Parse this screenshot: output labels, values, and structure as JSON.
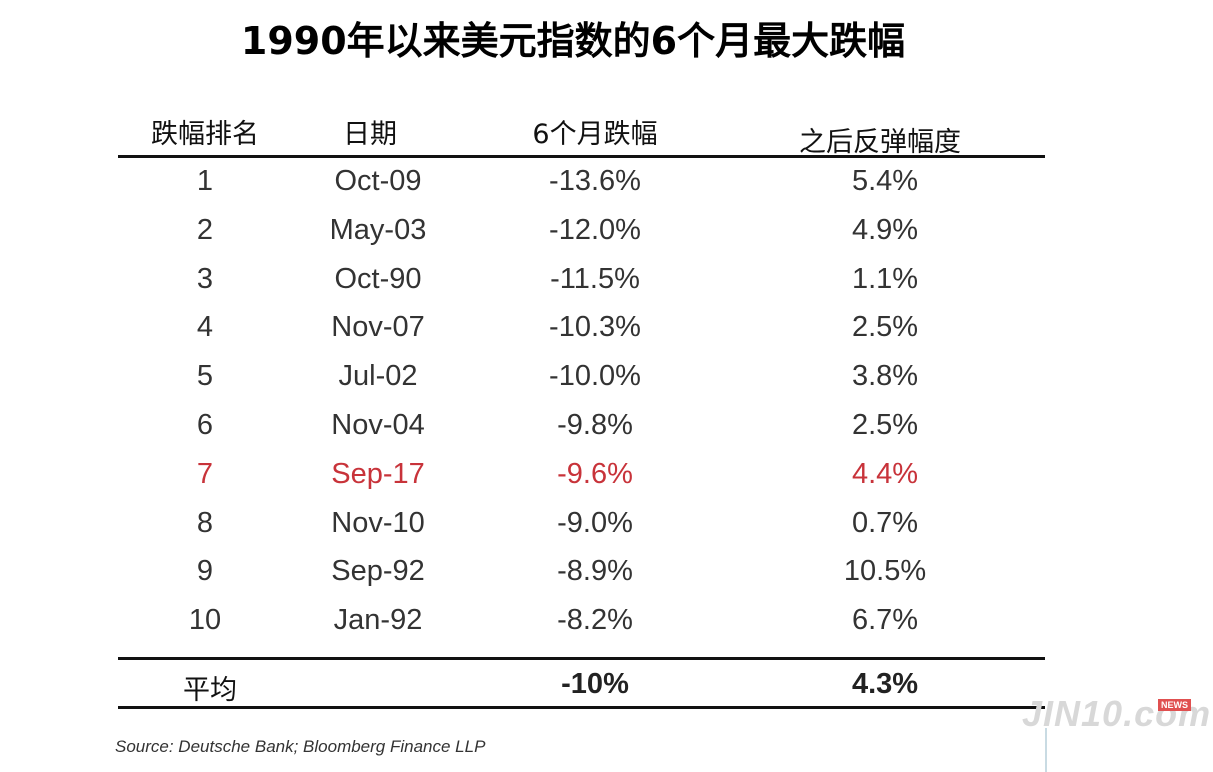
{
  "chart_data": {
    "type": "table",
    "title": "1990年以来美元指数的6个月最大跌幅",
    "columns": [
      "跌幅排名",
      "日期",
      "6个月跌幅",
      "之后反弹幅度"
    ],
    "rows": [
      {
        "rank": "1",
        "date": "Oct-09",
        "drop": "-13.6%",
        "rebound": "5.4%",
        "highlight": false
      },
      {
        "rank": "2",
        "date": "May-03",
        "drop": "-12.0%",
        "rebound": "4.9%",
        "highlight": false
      },
      {
        "rank": "3",
        "date": "Oct-90",
        "drop": "-11.5%",
        "rebound": "1.1%",
        "highlight": false
      },
      {
        "rank": "4",
        "date": "Nov-07",
        "drop": "-10.3%",
        "rebound": "2.5%",
        "highlight": false
      },
      {
        "rank": "5",
        "date": "Jul-02",
        "drop": "-10.0%",
        "rebound": "3.8%",
        "highlight": false
      },
      {
        "rank": "6",
        "date": "Nov-04",
        "drop": "-9.8%",
        "rebound": "2.5%",
        "highlight": false
      },
      {
        "rank": "7",
        "date": "Sep-17",
        "drop": "-9.6%",
        "rebound": "4.4%",
        "highlight": true
      },
      {
        "rank": "8",
        "date": "Nov-10",
        "drop": "-9.0%",
        "rebound": "0.7%",
        "highlight": false
      },
      {
        "rank": "9",
        "date": "Sep-92",
        "drop": "-8.9%",
        "rebound": "10.5%",
        "highlight": false
      },
      {
        "rank": "10",
        "date": "Jan-92",
        "drop": "-8.2%",
        "rebound": "6.7%",
        "highlight": false
      }
    ],
    "average": {
      "label": "平均",
      "drop": "-10%",
      "rebound": "4.3%"
    },
    "highlight_color": "#c8333a"
  },
  "source": "Source: Deutsche Bank; Bloomberg Finance LLP",
  "watermark": {
    "text": "JIN10.com",
    "badge": "NEWS"
  }
}
